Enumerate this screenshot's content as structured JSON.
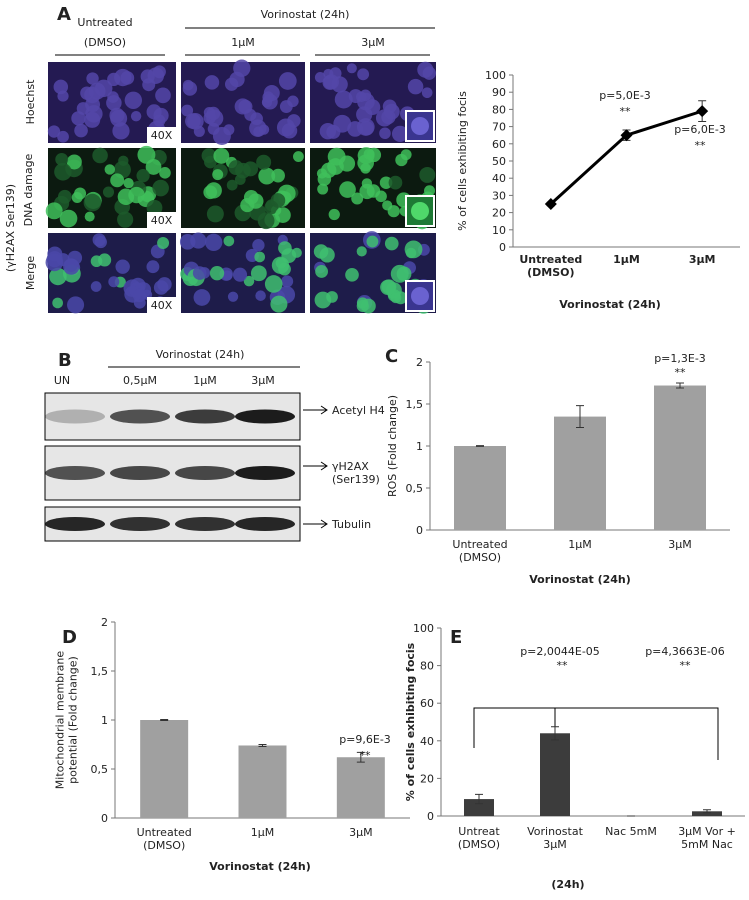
{
  "panel_a": {
    "label": "A",
    "untreated": "Untreated",
    "dmso": "(DMSO)",
    "treatment": "Vorinostat (24h)",
    "doses": [
      "1µM",
      "3µM"
    ],
    "rows": [
      "Hoechst",
      "(γH2AX Ser139)",
      "DNA damage",
      "Merge"
    ],
    "magnification": "40X"
  },
  "panel_b": {
    "label": "B",
    "treatment": "Vorinostat (24h)",
    "lanes": [
      "UN",
      "0,5µM",
      "1µM",
      "3µM"
    ],
    "proteins": [
      "Acetyl H4",
      "γH2AX\n(Ser139)",
      "Tubulin"
    ]
  },
  "chart_data": [
    {
      "type": "line",
      "ylabel": "% of cells exhibiting focis",
      "xlabel": "Vorinostat (24h)",
      "categories": [
        "Untreated\n(DMSO)",
        "1µM",
        "3µM"
      ],
      "values": [
        25,
        65,
        79
      ],
      "errors": [
        1,
        3,
        6
      ],
      "color": "#000000",
      "ylim": [
        0,
        100
      ],
      "yticks": [
        0,
        10,
        20,
        30,
        40,
        50,
        60,
        70,
        80,
        90,
        100
      ],
      "annotations": [
        "p=5,0E-3",
        "**",
        "p=6,0E-3",
        "**"
      ]
    },
    {
      "type": "bar",
      "panel_label": "C",
      "ylabel": "ROS (Fold change)",
      "xlabel": "Vorinostat (24h)",
      "categories": [
        "Untreated\n(DMSO)",
        "1µM",
        "3µM"
      ],
      "values": [
        1.0,
        1.35,
        1.72
      ],
      "errors": [
        0.005,
        0.13,
        0.03
      ],
      "color": "#a0a0a0",
      "ylim": [
        0,
        2
      ],
      "yticks": [
        0,
        {
          "value": 0.5,
          "label": "0,5"
        },
        1,
        {
          "value": 1.5,
          "label": "1,5"
        },
        2
      ],
      "annotations": [
        "p=1,3E-3",
        "**"
      ]
    },
    {
      "type": "bar",
      "panel_label": "D",
      "ylabel": "Mitochondrial membrane\npotential  (Fold change)",
      "xlabel": "Vorinostat (24h)",
      "categories": [
        "Untreated\n(DMSO)",
        "1µM",
        "3µM"
      ],
      "values": [
        1.0,
        0.74,
        0.62
      ],
      "errors": [
        0.005,
        0.01,
        0.05
      ],
      "color": "#a0a0a0",
      "ylim": [
        0,
        2
      ],
      "yticks": [
        0,
        {
          "value": 0.5,
          "label": "0,5"
        },
        1,
        {
          "value": 1.5,
          "label": "1,5"
        },
        2
      ],
      "annotations": [
        "p=9,6E-3",
        "**"
      ]
    },
    {
      "type": "bar",
      "panel_label": "E",
      "ylabel": "% of cells exhibiting focis",
      "xlabel": "(24h)",
      "categories": [
        "Untreat\n(DMSO)",
        "Vorinostat\n3µM",
        "Nac 5mM",
        "3µM Vor +\n5mM Nac"
      ],
      "values": [
        9,
        44,
        0,
        2.5
      ],
      "errors": [
        2.5,
        3.5,
        0,
        0.8
      ],
      "color": "#3c3c3c",
      "ylim": [
        0,
        100
      ],
      "yticks": [
        0,
        20,
        40,
        60,
        80,
        100
      ],
      "annotations": [
        "p=2,0044E-05",
        "**",
        "p=4,3663E-06",
        "**"
      ]
    }
  ]
}
